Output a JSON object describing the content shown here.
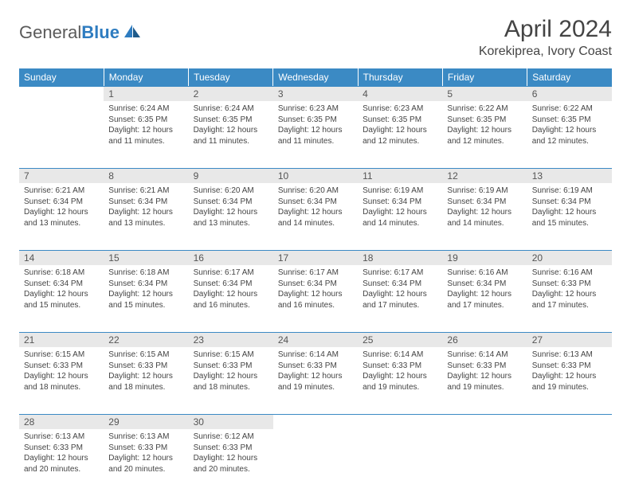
{
  "logo": {
    "text_gray": "General",
    "text_blue": "Blue"
  },
  "title": "April 2024",
  "location": "Korekiprea, Ivory Coast",
  "colors": {
    "header_bg": "#3b8ac4",
    "header_text": "#ffffff",
    "daynum_bg": "#e8e8e8",
    "daynum_text": "#555555",
    "cell_text": "#444444",
    "border": "#3b8ac4",
    "page_bg": "#ffffff",
    "logo_gray": "#5a5a5a",
    "logo_blue": "#2e7cc0"
  },
  "fonts": {
    "title_size": 30,
    "location_size": 16,
    "header_size": 12,
    "daynum_size": 12,
    "cell_size": 10,
    "logo_size": 22
  },
  "day_headers": [
    "Sunday",
    "Monday",
    "Tuesday",
    "Wednesday",
    "Thursday",
    "Friday",
    "Saturday"
  ],
  "weeks": [
    [
      null,
      {
        "n": "1",
        "sr": "Sunrise: 6:24 AM",
        "ss": "Sunset: 6:35 PM",
        "dl": "Daylight: 12 hours and 11 minutes."
      },
      {
        "n": "2",
        "sr": "Sunrise: 6:24 AM",
        "ss": "Sunset: 6:35 PM",
        "dl": "Daylight: 12 hours and 11 minutes."
      },
      {
        "n": "3",
        "sr": "Sunrise: 6:23 AM",
        "ss": "Sunset: 6:35 PM",
        "dl": "Daylight: 12 hours and 11 minutes."
      },
      {
        "n": "4",
        "sr": "Sunrise: 6:23 AM",
        "ss": "Sunset: 6:35 PM",
        "dl": "Daylight: 12 hours and 12 minutes."
      },
      {
        "n": "5",
        "sr": "Sunrise: 6:22 AM",
        "ss": "Sunset: 6:35 PM",
        "dl": "Daylight: 12 hours and 12 minutes."
      },
      {
        "n": "6",
        "sr": "Sunrise: 6:22 AM",
        "ss": "Sunset: 6:35 PM",
        "dl": "Daylight: 12 hours and 12 minutes."
      }
    ],
    [
      {
        "n": "7",
        "sr": "Sunrise: 6:21 AM",
        "ss": "Sunset: 6:34 PM",
        "dl": "Daylight: 12 hours and 13 minutes."
      },
      {
        "n": "8",
        "sr": "Sunrise: 6:21 AM",
        "ss": "Sunset: 6:34 PM",
        "dl": "Daylight: 12 hours and 13 minutes."
      },
      {
        "n": "9",
        "sr": "Sunrise: 6:20 AM",
        "ss": "Sunset: 6:34 PM",
        "dl": "Daylight: 12 hours and 13 minutes."
      },
      {
        "n": "10",
        "sr": "Sunrise: 6:20 AM",
        "ss": "Sunset: 6:34 PM",
        "dl": "Daylight: 12 hours and 14 minutes."
      },
      {
        "n": "11",
        "sr": "Sunrise: 6:19 AM",
        "ss": "Sunset: 6:34 PM",
        "dl": "Daylight: 12 hours and 14 minutes."
      },
      {
        "n": "12",
        "sr": "Sunrise: 6:19 AM",
        "ss": "Sunset: 6:34 PM",
        "dl": "Daylight: 12 hours and 14 minutes."
      },
      {
        "n": "13",
        "sr": "Sunrise: 6:19 AM",
        "ss": "Sunset: 6:34 PM",
        "dl": "Daylight: 12 hours and 15 minutes."
      }
    ],
    [
      {
        "n": "14",
        "sr": "Sunrise: 6:18 AM",
        "ss": "Sunset: 6:34 PM",
        "dl": "Daylight: 12 hours and 15 minutes."
      },
      {
        "n": "15",
        "sr": "Sunrise: 6:18 AM",
        "ss": "Sunset: 6:34 PM",
        "dl": "Daylight: 12 hours and 15 minutes."
      },
      {
        "n": "16",
        "sr": "Sunrise: 6:17 AM",
        "ss": "Sunset: 6:34 PM",
        "dl": "Daylight: 12 hours and 16 minutes."
      },
      {
        "n": "17",
        "sr": "Sunrise: 6:17 AM",
        "ss": "Sunset: 6:34 PM",
        "dl": "Daylight: 12 hours and 16 minutes."
      },
      {
        "n": "18",
        "sr": "Sunrise: 6:17 AM",
        "ss": "Sunset: 6:34 PM",
        "dl": "Daylight: 12 hours and 17 minutes."
      },
      {
        "n": "19",
        "sr": "Sunrise: 6:16 AM",
        "ss": "Sunset: 6:34 PM",
        "dl": "Daylight: 12 hours and 17 minutes."
      },
      {
        "n": "20",
        "sr": "Sunrise: 6:16 AM",
        "ss": "Sunset: 6:33 PM",
        "dl": "Daylight: 12 hours and 17 minutes."
      }
    ],
    [
      {
        "n": "21",
        "sr": "Sunrise: 6:15 AM",
        "ss": "Sunset: 6:33 PM",
        "dl": "Daylight: 12 hours and 18 minutes."
      },
      {
        "n": "22",
        "sr": "Sunrise: 6:15 AM",
        "ss": "Sunset: 6:33 PM",
        "dl": "Daylight: 12 hours and 18 minutes."
      },
      {
        "n": "23",
        "sr": "Sunrise: 6:15 AM",
        "ss": "Sunset: 6:33 PM",
        "dl": "Daylight: 12 hours and 18 minutes."
      },
      {
        "n": "24",
        "sr": "Sunrise: 6:14 AM",
        "ss": "Sunset: 6:33 PM",
        "dl": "Daylight: 12 hours and 19 minutes."
      },
      {
        "n": "25",
        "sr": "Sunrise: 6:14 AM",
        "ss": "Sunset: 6:33 PM",
        "dl": "Daylight: 12 hours and 19 minutes."
      },
      {
        "n": "26",
        "sr": "Sunrise: 6:14 AM",
        "ss": "Sunset: 6:33 PM",
        "dl": "Daylight: 12 hours and 19 minutes."
      },
      {
        "n": "27",
        "sr": "Sunrise: 6:13 AM",
        "ss": "Sunset: 6:33 PM",
        "dl": "Daylight: 12 hours and 19 minutes."
      }
    ],
    [
      {
        "n": "28",
        "sr": "Sunrise: 6:13 AM",
        "ss": "Sunset: 6:33 PM",
        "dl": "Daylight: 12 hours and 20 minutes."
      },
      {
        "n": "29",
        "sr": "Sunrise: 6:13 AM",
        "ss": "Sunset: 6:33 PM",
        "dl": "Daylight: 12 hours and 20 minutes."
      },
      {
        "n": "30",
        "sr": "Sunrise: 6:12 AM",
        "ss": "Sunset: 6:33 PM",
        "dl": "Daylight: 12 hours and 20 minutes."
      },
      null,
      null,
      null,
      null
    ]
  ]
}
